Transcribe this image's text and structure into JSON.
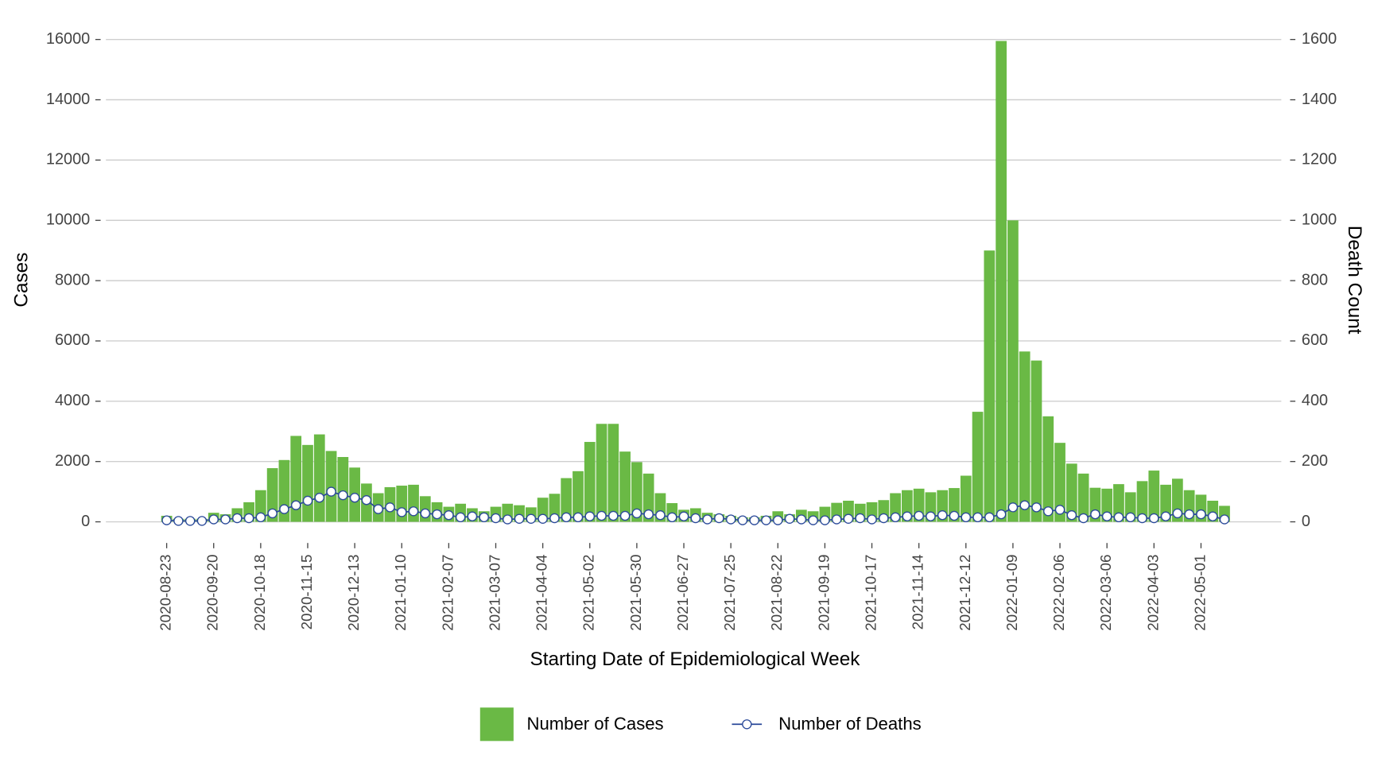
{
  "chart_data": {
    "type": "bar",
    "x_label": "Starting Date of Epidemiological Week",
    "y_label": "Cases",
    "y2_label": "Death Count",
    "categories": [
      "2020-08-23",
      null,
      null,
      null,
      "2020-09-20",
      null,
      null,
      null,
      "2020-10-18",
      null,
      null,
      null,
      "2020-11-15",
      null,
      null,
      null,
      "2020-12-13",
      null,
      null,
      null,
      "2021-01-10",
      null,
      null,
      null,
      "2021-02-07",
      null,
      null,
      null,
      "2021-03-07",
      null,
      null,
      null,
      "2021-04-04",
      null,
      null,
      null,
      "2021-05-02",
      null,
      null,
      null,
      "2021-05-30",
      null,
      null,
      null,
      "2021-06-27",
      null,
      null,
      null,
      "2021-07-25",
      null,
      null,
      null,
      "2021-08-22",
      null,
      null,
      null,
      "2021-09-19",
      null,
      null,
      null,
      "2021-10-17",
      null,
      null,
      null,
      "2021-11-14",
      null,
      null,
      null,
      "2021-12-12",
      null,
      null,
      null,
      "2022-01-09",
      null,
      null,
      null,
      "2022-02-06",
      null,
      null,
      null,
      "2022-03-06",
      null,
      null,
      null,
      "2022-04-03",
      null,
      null,
      null,
      "2022-05-01",
      null,
      null
    ],
    "series": [
      {
        "name": "Number of Cases",
        "type": "bar",
        "color": "#6ab945",
        "values": [
          200,
          100,
          100,
          100,
          300,
          250,
          450,
          650,
          1050,
          1780,
          2050,
          2850,
          2550,
          2900,
          2350,
          2150,
          1800,
          1270,
          950,
          1150,
          1200,
          1230,
          850,
          650,
          500,
          600,
          450,
          350,
          500,
          600,
          550,
          480,
          800,
          930,
          1450,
          1680,
          2650,
          3250,
          3250,
          2330,
          1980,
          1600,
          950,
          620,
          400,
          450,
          300,
          250,
          200,
          150,
          150,
          200,
          350,
          250,
          400,
          350,
          500,
          630,
          700,
          600,
          650,
          720,
          950,
          1050,
          1100,
          980,
          1050,
          1120,
          1530,
          3650,
          9000,
          15950,
          10000,
          5650,
          5350,
          3500,
          2620,
          1930,
          1600,
          1130,
          1100,
          1250,
          980,
          1350,
          1700,
          1230,
          1430,
          1050,
          900,
          700,
          530
        ]
      },
      {
        "name": "Number of Deaths",
        "type": "line",
        "axis": "y2",
        "color": "#2b4a9a",
        "marker_fill": "#ffffff",
        "values": [
          5,
          3,
          3,
          3,
          8,
          8,
          12,
          12,
          15,
          28,
          42,
          55,
          70,
          80,
          100,
          88,
          80,
          72,
          42,
          48,
          32,
          35,
          28,
          25,
          22,
          15,
          18,
          15,
          12,
          8,
          10,
          10,
          10,
          12,
          15,
          15,
          18,
          20,
          20,
          20,
          28,
          25,
          22,
          15,
          18,
          12,
          8,
          12,
          8,
          5,
          5,
          5,
          5,
          10,
          8,
          5,
          5,
          8,
          10,
          12,
          8,
          12,
          15,
          18,
          20,
          18,
          22,
          20,
          15,
          15,
          15,
          25,
          48,
          55,
          48,
          35,
          40,
          22,
          12,
          25,
          18,
          15,
          15,
          12,
          12,
          18,
          28,
          25,
          25,
          18,
          8
        ]
      }
    ],
    "ylim": [
      -600,
      16200
    ],
    "yticks": [
      0,
      2000,
      4000,
      6000,
      8000,
      10000,
      12000,
      14000,
      16000
    ],
    "y2lim": [
      -60,
      1620
    ],
    "y2ticks": [
      0,
      200,
      400,
      600,
      800,
      1000,
      1200,
      1400,
      1600
    ],
    "grid": true,
    "legend": "bottom"
  }
}
